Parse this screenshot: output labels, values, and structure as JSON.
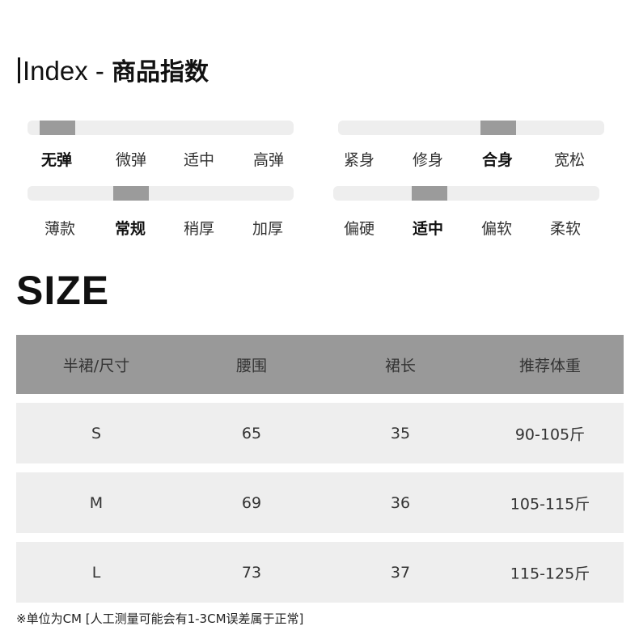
{
  "title": {
    "en": "Index - ",
    "cn": "商品指数"
  },
  "indices": [
    {
      "name": "elasticity",
      "options": [
        "无弹",
        "微弹",
        "适中",
        "高弹"
      ],
      "selected": 0
    },
    {
      "name": "fit",
      "options": [
        "紧身",
        "修身",
        "合身",
        "宽松"
      ],
      "selected": 2
    },
    {
      "name": "thickness",
      "options": [
        "薄款",
        "常规",
        "稍厚",
        "加厚"
      ],
      "selected": 1
    },
    {
      "name": "softness",
      "options": [
        "偏硬",
        "适中",
        "偏软",
        "柔软"
      ],
      "selected": 1
    }
  ],
  "size_title": "SIZE",
  "table": {
    "headers": [
      "半裙/尺寸",
      "腰围",
      "裙长",
      "推荐体重"
    ],
    "rows": [
      [
        "S",
        "65",
        "35",
        "90-105斤"
      ],
      [
        "M",
        "69",
        "36",
        "105-115斤"
      ],
      [
        "L",
        "73",
        "37",
        "115-125斤"
      ]
    ]
  },
  "note": "※单位为CM [人工测量可能会有1-3CM误差属于正常]",
  "colors": {
    "track": "#eeeeee",
    "thumb": "#9b9b9b",
    "header": "#999999",
    "row": "#eeeeee"
  }
}
